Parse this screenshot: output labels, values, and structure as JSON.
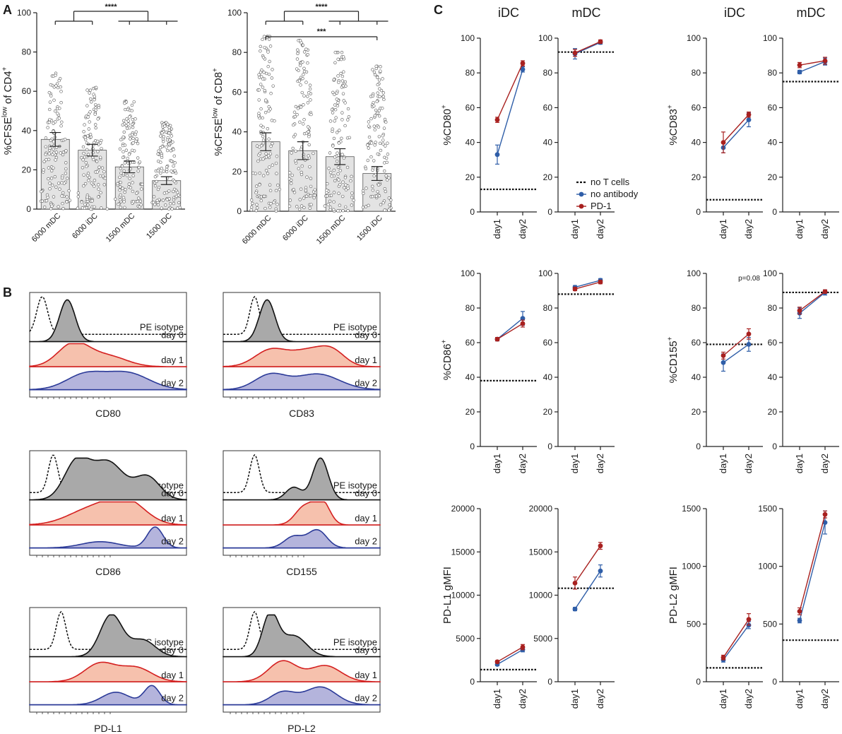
{
  "colors": {
    "blue": "#2f5ea8",
    "red": "#a8201f",
    "bar_fill": "#e3e3e3",
    "dot_fill": "#ffffff",
    "hist_day0": "#a9a9a9",
    "hist_day1": "#f6c1ad",
    "hist_day2": "#b4b4dc"
  },
  "panel_letters": [
    "A",
    "B",
    "C"
  ],
  "chart_data": [
    {
      "type": "bar",
      "panel": "A-left",
      "ylabel": "%CFSE",
      "ylabel_sup": "low",
      "ylabel_tail": " of CD4",
      "ylabel_tail_sup": "+",
      "ylim": [
        0,
        100
      ],
      "yticks": [
        "0",
        "20",
        "40",
        "60",
        "80",
        "100"
      ],
      "categories": [
        "6000 mDC",
        "6000 iDC",
        "1500 mDC",
        "1500 iDC"
      ],
      "values": [
        35.5,
        30,
        21.5,
        14.5
      ],
      "errors": [
        3.5,
        3,
        3,
        2
      ],
      "point_max": [
        70,
        63,
        55,
        44
      ],
      "significance": [
        {
          "label": "****",
          "from_groups": [
            [
              0,
              1
            ],
            [
              2,
              3
            ]
          ]
        }
      ]
    },
    {
      "type": "bar",
      "panel": "A-right",
      "ylabel": "%CFSE",
      "ylabel_sup": "low",
      "ylabel_tail": " of CD8",
      "ylabel_tail_sup": "+",
      "ylim": [
        0,
        100
      ],
      "yticks": [
        "0",
        "20",
        "40",
        "60",
        "80",
        "100"
      ],
      "categories": [
        "6000 mDC",
        "6000 iDC",
        "1500 mDC",
        "1500 iDC"
      ],
      "values": [
        35,
        30.5,
        27.5,
        19
      ],
      "errors": [
        4.5,
        4.5,
        4,
        3.5
      ],
      "point_max": [
        88,
        86,
        80,
        73
      ],
      "significance": [
        {
          "label": "****",
          "from_groups": [
            [
              0,
              1
            ],
            [
              2,
              3
            ]
          ]
        },
        {
          "label": "***",
          "from_groups": [
            [
              0
            ],
            [
              1,
              2,
              3
            ]
          ]
        }
      ]
    },
    {
      "type": "histogram-overlay",
      "panel": "B",
      "row_labels": [
        "day 0",
        "day 1",
        "day 2"
      ],
      "panels": [
        {
          "marker": "CD80",
          "isotype": "PE isotype"
        },
        {
          "marker": "CD83",
          "isotype": "PE isotype"
        },
        {
          "marker": "CD86",
          "isotype": "PE isotype"
        },
        {
          "marker": "CD155",
          "isotype": "PE isotype"
        },
        {
          "marker": "PD-L1",
          "isotype": "APC isotype"
        },
        {
          "marker": "PD-L2",
          "isotype": "PE isotype"
        }
      ]
    },
    {
      "type": "line",
      "panel": "C",
      "column_titles": [
        "iDC",
        "mDC",
        "iDC",
        "mDC"
      ],
      "x": [
        "day1",
        "day2"
      ],
      "legend": [
        "no T cells",
        "no antibody",
        "PD-1"
      ],
      "annotation": "p=0.08",
      "rows": [
        {
          "ylabel_left": "%CD80",
          "ylabel_left_sup": "+",
          "ylabel_right": "%CD83",
          "ylabel_right_sup": "+",
          "ylim": [
            0,
            100
          ],
          "yticks": [
            "0",
            "20",
            "40",
            "60",
            "80",
            "100"
          ],
          "plots": [
            {
              "no_antibody": [
                33,
                82
              ],
              "pd1": [
                53,
                85.5
              ],
              "no_antibody_err": [
                5.5,
                1.5
              ],
              "pd1_err": [
                1.5,
                1.5
              ],
              "no_t_cells": 13
            },
            {
              "no_antibody": [
                91,
                97.5
              ],
              "pd1": [
                91.5,
                98
              ],
              "no_antibody_err": [
                3,
                1
              ],
              "pd1_err": [
                2,
                1
              ],
              "no_t_cells": 92
            },
            {
              "no_antibody": [
                37,
                53
              ],
              "pd1": [
                40,
                56
              ],
              "no_antibody_err": [
                3,
                4
              ],
              "pd1_err": [
                6,
                1.5
              ],
              "no_t_cells": 7
            },
            {
              "no_antibody": [
                80.5,
                86.5
              ],
              "pd1": [
                84.5,
                87
              ],
              "no_antibody_err": [
                1,
                2
              ],
              "pd1_err": [
                1.5,
                2
              ],
              "no_t_cells": 75
            }
          ]
        },
        {
          "ylabel_left": "%CD86",
          "ylabel_left_sup": "+",
          "ylabel_right": "%CD155",
          "ylabel_right_sup": "+",
          "ylim": [
            0,
            100
          ],
          "yticks": [
            "0",
            "20",
            "40",
            "60",
            "80",
            "100"
          ],
          "plots": [
            {
              "no_antibody": [
                62,
                74
              ],
              "pd1": [
                62,
                71
              ],
              "no_antibody_err": [
                1,
                4
              ],
              "pd1_err": [
                1,
                2
              ],
              "no_t_cells": 38
            },
            {
              "no_antibody": [
                92,
                96
              ],
              "pd1": [
                91,
                95
              ],
              "no_antibody_err": [
                1,
                1
              ],
              "pd1_err": [
                1,
                1
              ],
              "no_t_cells": 88
            },
            {
              "no_antibody": [
                48.5,
                59
              ],
              "pd1": [
                52.5,
                65
              ],
              "no_antibody_err": [
                5,
                4
              ],
              "pd1_err": [
                2,
                3
              ],
              "no_t_cells": 59
            },
            {
              "no_antibody": [
                77,
                89
              ],
              "pd1": [
                78.5,
                89.5
              ],
              "no_antibody_err": [
                3,
                1.5
              ],
              "pd1_err": [
                2,
                1
              ],
              "no_t_cells": 89
            }
          ]
        },
        {
          "ylabel_left": "PD-L1 gMFI",
          "ylabel_left_sup": "",
          "ylabel_right": "PD-L2 gMFI",
          "ylabel_right_sup": "",
          "plots": [
            {
              "ylim": [
                0,
                20000
              ],
              "yticks": [
                "0",
                "5000",
                "10000",
                "15000",
                "20000"
              ],
              "no_antibody": [
                2000,
                3700
              ],
              "pd1": [
                2300,
                4000
              ],
              "no_antibody_err": [
                150,
                250
              ],
              "pd1_err": [
                150,
                300
              ],
              "no_t_cells": 1400
            },
            {
              "ylim": [
                0,
                20000
              ],
              "yticks": [
                "0",
                "5000",
                "10000",
                "15000",
                "20000"
              ],
              "no_antibody": [
                8400,
                12800
              ],
              "pd1": [
                11400,
                15700
              ],
              "no_antibody_err": [
                200,
                700
              ],
              "pd1_err": [
                700,
                400
              ],
              "no_t_cells": 10800
            },
            {
              "ylim": [
                0,
                1500
              ],
              "yticks": [
                "0",
                "500",
                "1000",
                "1500"
              ],
              "no_antibody": [
                190,
                490
              ],
              "pd1": [
                210,
                540
              ],
              "no_antibody_err": [
                20,
                30
              ],
              "pd1_err": [
                20,
                50
              ],
              "no_t_cells": 120
            },
            {
              "ylim": [
                0,
                1500
              ],
              "yticks": [
                "0",
                "500",
                "1000",
                "1500"
              ],
              "no_antibody": [
                530,
                1380
              ],
              "pd1": [
                610,
                1450
              ],
              "no_antibody_err": [
                20,
                100
              ],
              "pd1_err": [
                30,
                30
              ],
              "no_t_cells": 360
            }
          ]
        }
      ]
    }
  ]
}
